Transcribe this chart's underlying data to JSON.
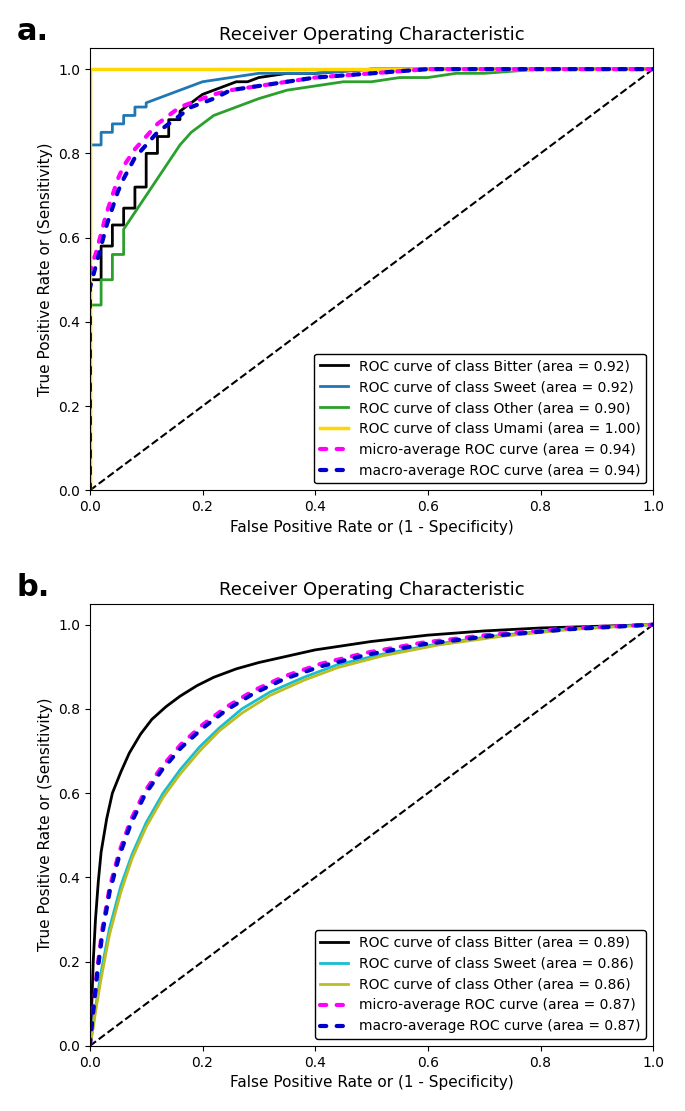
{
  "panel_a": {
    "title": "Receiver Operating Characteristic",
    "xlabel": "False Positive Rate or (1 - Specificity)",
    "ylabel": "True Positive Rate or (Sensitivity)",
    "curves": [
      {
        "label": "ROC curve of class Bitter (area = 0.92)",
        "color": "#000000",
        "linestyle": "solid",
        "linewidth": 2.0,
        "fpr": [
          0.0,
          0.0,
          0.0,
          0.0,
          0.0,
          0.02,
          0.02,
          0.02,
          0.04,
          0.04,
          0.06,
          0.06,
          0.08,
          0.08,
          0.1,
          0.1,
          0.1,
          0.12,
          0.12,
          0.14,
          0.14,
          0.16,
          0.16,
          0.18,
          0.2,
          0.22,
          0.24,
          0.26,
          0.28,
          0.3,
          0.35,
          0.4,
          0.5,
          0.6,
          0.7,
          0.8,
          1.0
        ],
        "tpr": [
          0.0,
          0.18,
          0.38,
          0.45,
          0.5,
          0.5,
          0.54,
          0.58,
          0.58,
          0.63,
          0.63,
          0.67,
          0.67,
          0.72,
          0.72,
          0.77,
          0.8,
          0.8,
          0.84,
          0.84,
          0.88,
          0.88,
          0.9,
          0.92,
          0.94,
          0.95,
          0.96,
          0.97,
          0.97,
          0.98,
          0.99,
          0.99,
          1.0,
          1.0,
          1.0,
          1.0,
          1.0
        ]
      },
      {
        "label": "ROC curve of class Sweet (area = 0.92)",
        "color": "#1f77b4",
        "linestyle": "solid",
        "linewidth": 2.0,
        "fpr": [
          0.0,
          0.0,
          0.0,
          0.0,
          0.02,
          0.02,
          0.04,
          0.04,
          0.06,
          0.06,
          0.08,
          0.08,
          0.1,
          0.1,
          0.12,
          0.14,
          0.16,
          0.18,
          0.2,
          0.25,
          0.3,
          0.4,
          0.5,
          0.7,
          1.0
        ],
        "tpr": [
          0.0,
          0.18,
          0.78,
          0.82,
          0.82,
          0.85,
          0.85,
          0.87,
          0.87,
          0.89,
          0.89,
          0.91,
          0.91,
          0.92,
          0.93,
          0.94,
          0.95,
          0.96,
          0.97,
          0.98,
          0.99,
          0.99,
          1.0,
          1.0,
          1.0
        ]
      },
      {
        "label": "ROC curve of class Other (area = 0.90)",
        "color": "#2ca02c",
        "linestyle": "solid",
        "linewidth": 2.0,
        "fpr": [
          0.0,
          0.0,
          0.0,
          0.02,
          0.02,
          0.04,
          0.04,
          0.06,
          0.06,
          0.08,
          0.1,
          0.12,
          0.14,
          0.16,
          0.18,
          0.2,
          0.22,
          0.24,
          0.26,
          0.28,
          0.3,
          0.35,
          0.4,
          0.45,
          0.5,
          0.55,
          0.6,
          0.65,
          0.7,
          0.8,
          1.0
        ],
        "tpr": [
          0.0,
          0.38,
          0.44,
          0.44,
          0.5,
          0.5,
          0.56,
          0.56,
          0.62,
          0.66,
          0.7,
          0.74,
          0.78,
          0.82,
          0.85,
          0.87,
          0.89,
          0.9,
          0.91,
          0.92,
          0.93,
          0.95,
          0.96,
          0.97,
          0.97,
          0.98,
          0.98,
          0.99,
          0.99,
          1.0,
          1.0
        ]
      },
      {
        "label": "ROC curve of class Umami (area = 1.00)",
        "color": "#FFD700",
        "linestyle": "solid",
        "linewidth": 2.5,
        "fpr": [
          0.0,
          0.0,
          1.0
        ],
        "tpr": [
          0.0,
          1.0,
          1.0
        ]
      },
      {
        "label": "micro-average ROC curve (area = 0.94)",
        "color": "#ff00ff",
        "linestyle": "dotted",
        "linewidth": 3.0,
        "fpr": [
          0.0,
          0.0,
          0.01,
          0.02,
          0.03,
          0.04,
          0.05,
          0.06,
          0.08,
          0.1,
          0.12,
          0.14,
          0.16,
          0.18,
          0.2,
          0.22,
          0.25,
          0.3,
          0.35,
          0.4,
          0.5,
          0.6,
          0.7,
          0.8,
          1.0
        ],
        "tpr": [
          0.0,
          0.52,
          0.56,
          0.61,
          0.66,
          0.7,
          0.74,
          0.77,
          0.81,
          0.84,
          0.87,
          0.89,
          0.91,
          0.92,
          0.93,
          0.94,
          0.95,
          0.96,
          0.97,
          0.98,
          0.99,
          1.0,
          1.0,
          1.0,
          1.0
        ]
      },
      {
        "label": "macro-average ROC curve (area = 0.94)",
        "color": "#0000cc",
        "linestyle": "dotted",
        "linewidth": 3.0,
        "fpr": [
          0.0,
          0.0,
          0.01,
          0.02,
          0.03,
          0.04,
          0.05,
          0.06,
          0.08,
          0.1,
          0.12,
          0.14,
          0.16,
          0.18,
          0.2,
          0.22,
          0.25,
          0.3,
          0.35,
          0.4,
          0.5,
          0.6,
          0.7,
          0.8,
          1.0
        ],
        "tpr": [
          0.0,
          0.48,
          0.53,
          0.58,
          0.63,
          0.67,
          0.71,
          0.74,
          0.79,
          0.82,
          0.85,
          0.87,
          0.89,
          0.91,
          0.92,
          0.93,
          0.95,
          0.96,
          0.97,
          0.98,
          0.99,
          1.0,
          1.0,
          1.0,
          1.0
        ]
      }
    ]
  },
  "panel_b": {
    "title": "Receiver Operating Characteristic",
    "xlabel": "False Positive Rate or (1 - Specificity)",
    "ylabel": "True Positive Rate or (Sensitivity)",
    "curves": [
      {
        "label": "ROC curve of class Bitter (area = 0.89)",
        "color": "#000000",
        "linestyle": "solid",
        "linewidth": 2.0,
        "fpr": [
          0.0,
          0.002,
          0.004,
          0.006,
          0.01,
          0.015,
          0.02,
          0.03,
          0.04,
          0.055,
          0.07,
          0.09,
          0.11,
          0.135,
          0.16,
          0.19,
          0.22,
          0.26,
          0.3,
          0.35,
          0.4,
          0.5,
          0.6,
          0.7,
          0.8,
          1.0
        ],
        "tpr": [
          0.0,
          0.05,
          0.12,
          0.2,
          0.3,
          0.39,
          0.46,
          0.54,
          0.6,
          0.65,
          0.695,
          0.74,
          0.775,
          0.805,
          0.83,
          0.855,
          0.875,
          0.895,
          0.91,
          0.925,
          0.94,
          0.96,
          0.975,
          0.985,
          0.992,
          1.0
        ]
      },
      {
        "label": "ROC curve of class Sweet (area = 0.86)",
        "color": "#17becf",
        "linestyle": "solid",
        "linewidth": 2.0,
        "fpr": [
          0.0,
          0.005,
          0.01,
          0.02,
          0.035,
          0.055,
          0.075,
          0.1,
          0.13,
          0.16,
          0.195,
          0.23,
          0.27,
          0.32,
          0.38,
          0.44,
          0.52,
          0.62,
          0.73,
          0.85,
          1.0
        ],
        "tpr": [
          0.0,
          0.04,
          0.09,
          0.175,
          0.28,
          0.38,
          0.455,
          0.53,
          0.6,
          0.655,
          0.71,
          0.755,
          0.8,
          0.84,
          0.875,
          0.905,
          0.93,
          0.955,
          0.975,
          0.99,
          1.0
        ]
      },
      {
        "label": "ROC curve of class Other (area = 0.86)",
        "color": "#bcbd22",
        "linestyle": "solid",
        "linewidth": 2.0,
        "fpr": [
          0.0,
          0.005,
          0.01,
          0.02,
          0.035,
          0.055,
          0.075,
          0.1,
          0.13,
          0.16,
          0.195,
          0.23,
          0.27,
          0.32,
          0.38,
          0.44,
          0.52,
          0.62,
          0.73,
          0.85,
          1.0
        ],
        "tpr": [
          0.0,
          0.035,
          0.08,
          0.16,
          0.265,
          0.365,
          0.445,
          0.52,
          0.59,
          0.645,
          0.7,
          0.748,
          0.79,
          0.832,
          0.868,
          0.898,
          0.926,
          0.952,
          0.972,
          0.988,
          1.0
        ]
      },
      {
        "label": "micro-average ROC curve (area = 0.87)",
        "color": "#ff00ff",
        "linestyle": "dotted",
        "linewidth": 3.0,
        "fpr": [
          0.0,
          0.003,
          0.007,
          0.013,
          0.022,
          0.035,
          0.052,
          0.073,
          0.098,
          0.128,
          0.162,
          0.2,
          0.242,
          0.29,
          0.345,
          0.41,
          0.49,
          0.59,
          0.71,
          0.85,
          1.0
        ],
        "tpr": [
          0.0,
          0.045,
          0.1,
          0.18,
          0.275,
          0.375,
          0.46,
          0.537,
          0.605,
          0.663,
          0.716,
          0.762,
          0.804,
          0.843,
          0.877,
          0.907,
          0.933,
          0.957,
          0.976,
          0.991,
          1.0
        ]
      },
      {
        "label": "macro-average ROC curve (area = 0.87)",
        "color": "#0000cc",
        "linestyle": "dotted",
        "linewidth": 3.0,
        "fpr": [
          0.0,
          0.003,
          0.007,
          0.013,
          0.022,
          0.035,
          0.052,
          0.073,
          0.098,
          0.128,
          0.162,
          0.2,
          0.242,
          0.29,
          0.345,
          0.41,
          0.49,
          0.59,
          0.71,
          0.85,
          1.0
        ],
        "tpr": [
          0.0,
          0.042,
          0.095,
          0.17,
          0.265,
          0.365,
          0.45,
          0.528,
          0.597,
          0.655,
          0.708,
          0.754,
          0.797,
          0.836,
          0.871,
          0.901,
          0.928,
          0.953,
          0.973,
          0.989,
          1.0
        ]
      }
    ]
  },
  "panel_label_fontsize": 22,
  "title_fontsize": 13,
  "axis_label_fontsize": 11,
  "tick_fontsize": 10,
  "legend_fontsize": 10,
  "background_color": "#ffffff"
}
